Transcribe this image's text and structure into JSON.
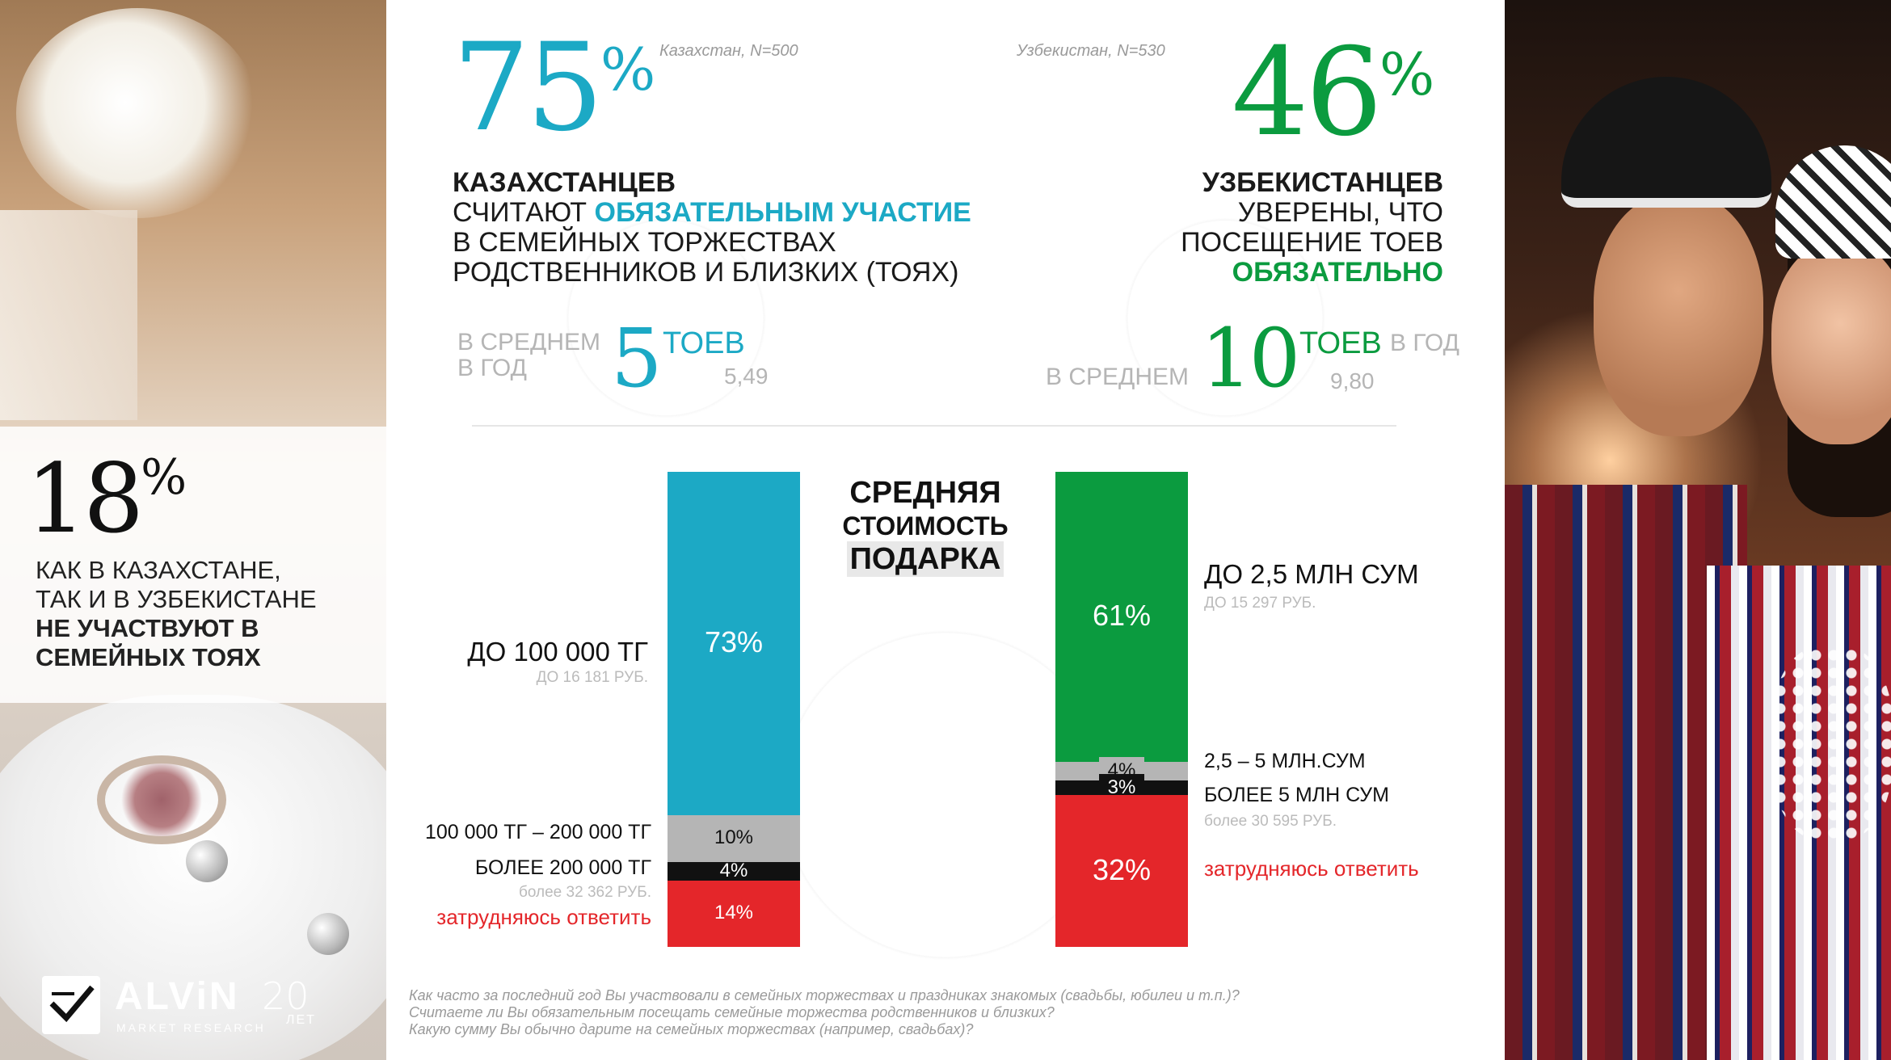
{
  "colors": {
    "kz": "#1ca9c5",
    "uz": "#0b9b3f",
    "gray": "#b5b5b5",
    "black": "#111111",
    "red": "#e4262a"
  },
  "kz": {
    "note": "Казахстан, N=500",
    "pct": "75",
    "pct_sign": "%",
    "line1": "КАЗАХСТАНЦЕВ",
    "line2_a": "СЧИТАЮТ ",
    "line2_b": "ОБЯЗАТЕЛЬНЫМ УЧАСТИЕ",
    "line3": "В СЕМЕЙНЫХ ТОРЖЕСТВАХ",
    "line4": "РОДСТВЕННИКОВ И БЛИЗКИХ (ТОЯХ)",
    "avg_label_1": "В СРЕДНЕМ",
    "avg_label_2": "В ГОД",
    "avg_num": "5",
    "avg_unit": "ТОЕВ",
    "avg_exact": "5,49"
  },
  "uz": {
    "note": "Узбекистан, N=530",
    "pct": "46",
    "pct_sign": "%",
    "line1": "УЗБЕКИСТАНЦЕВ",
    "line2": "УВЕРЕНЫ, ЧТО",
    "line3": "ПОСЕЩЕНИЕ ТОЕВ",
    "line4": "ОБЯЗАТЕЛЬНО",
    "avg_label_1": "В СРЕДНЕМ",
    "avg_num": "10",
    "avg_unit": "ТОЕВ",
    "avg_label_2": "В ГОД",
    "avg_exact": "9,80"
  },
  "left": {
    "pct": "18",
    "pct_sign": "%",
    "line1": "КАК В КАЗАХСТАНЕ,",
    "line2": "ТАК И В УЗБЕКИСТАНЕ",
    "line3": "НЕ УЧАСТВУЮТ В",
    "line4": "СЕМЕЙНЫХ ТОЯХ"
  },
  "center_title": {
    "line1": "СРЕДНЯЯ",
    "line2": "СТОИМОСТЬ",
    "line3": "ПОДАРКА"
  },
  "chart_data": [
    {
      "type": "bar",
      "stacked": true,
      "country": "Казахстан",
      "unit": "%",
      "segments": [
        {
          "label": "ДО 100 000 ТГ",
          "sublabel": "ДО 16 181 РУБ.",
          "value": 73,
          "display": "73%",
          "color": "#1ca9c5"
        },
        {
          "label": "100 000 ТГ – 200 000 ТГ",
          "sublabel": "",
          "value": 10,
          "display": "10%",
          "color": "#b5b5b5"
        },
        {
          "label": "БОЛЕЕ 200 000 ТГ",
          "sublabel": "более 32 362 РУБ.",
          "value": 4,
          "display": "4%",
          "color": "#111111"
        },
        {
          "label": "затрудняюсь ответить",
          "sublabel": "",
          "value": 14,
          "display": "14%",
          "color": "#e4262a"
        }
      ]
    },
    {
      "type": "bar",
      "stacked": true,
      "country": "Узбекистан",
      "unit": "%",
      "segments": [
        {
          "label": "ДО 2,5 МЛН СУМ",
          "sublabel": "ДО 15 297 РУБ.",
          "value": 61,
          "display": "61%",
          "color": "#0b9b3f"
        },
        {
          "label": "2,5 – 5 МЛН.СУМ",
          "sublabel": "",
          "value": 4,
          "display": "4%",
          "color": "#b5b5b5"
        },
        {
          "label": "БОЛЕЕ 5 МЛН СУМ",
          "sublabel": "более 30 595 РУБ.",
          "value": 3,
          "display": "3%",
          "color": "#111111"
        },
        {
          "label": "затрудняюсь ответить",
          "sublabel": "",
          "value": 32,
          "display": "32%",
          "color": "#e4262a"
        }
      ]
    }
  ],
  "footnotes": [
    "Как часто за последний год Вы участвовали в семейных торжествах и праздниках знакомых (свадьбы, юбилеи и т.п.)?",
    "Считаете ли Вы обязательным посещать семейные торжества родственников и близких?",
    "Какую сумму Вы обычно дарите на семейных торжествах (например, свадьбах)?"
  ],
  "logo": {
    "name": "ALViN",
    "sub": "MARKET RESEARCH",
    "years": "20",
    "years_label": "ЛЕТ"
  }
}
